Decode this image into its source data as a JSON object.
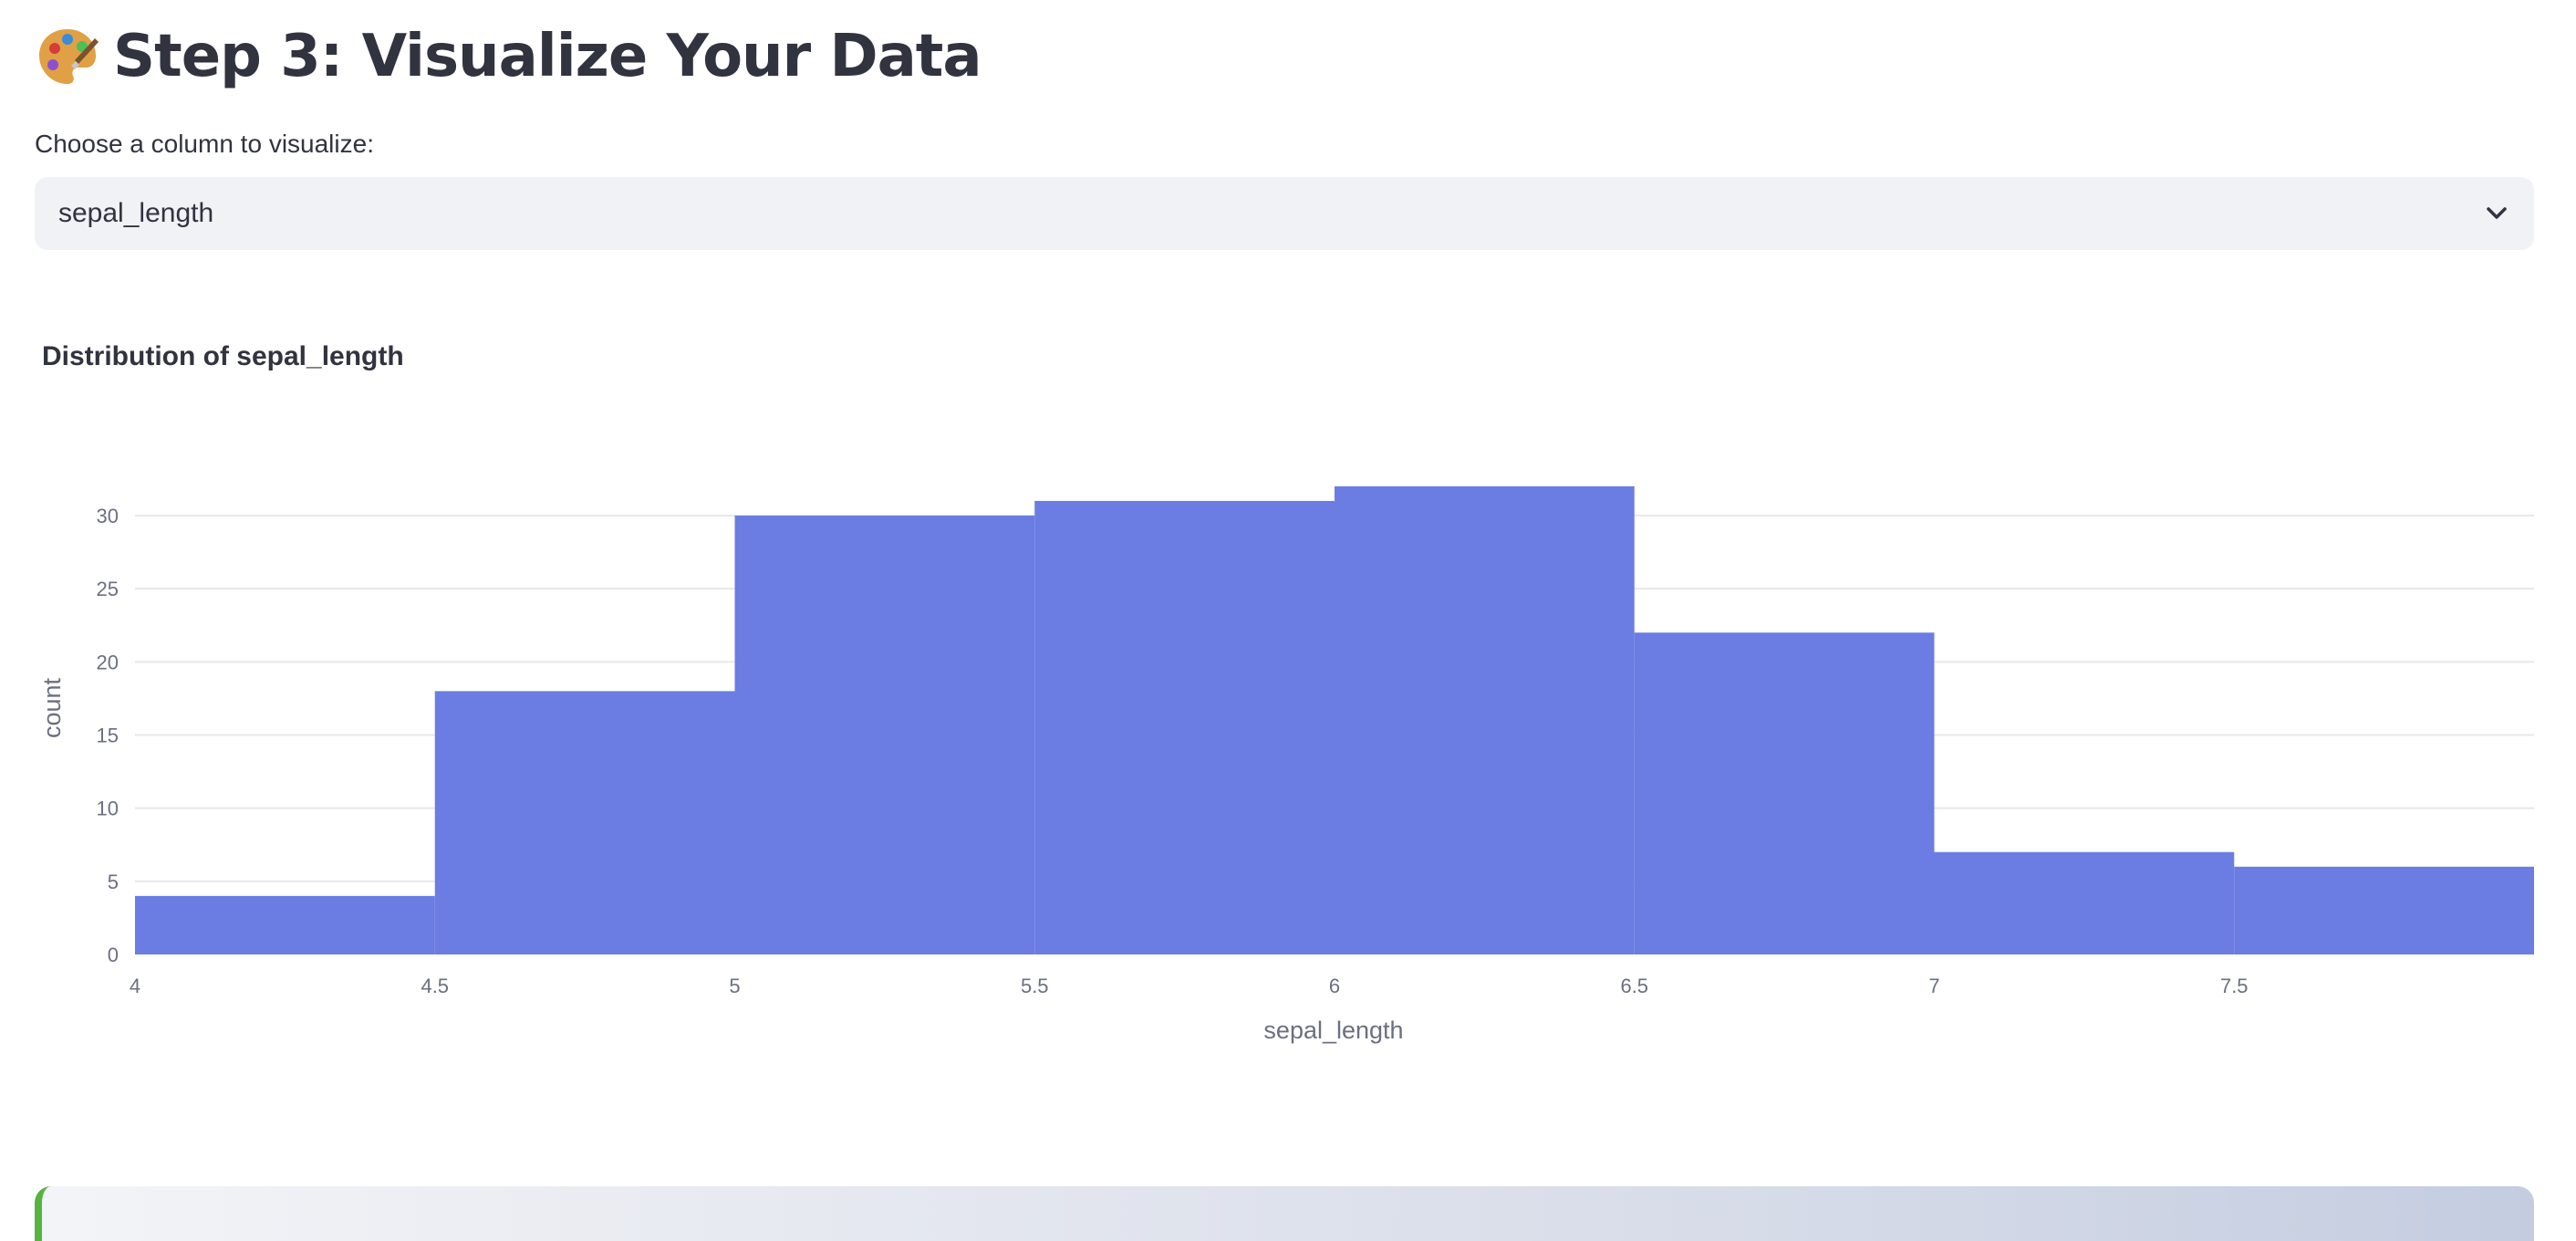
{
  "header": {
    "icon": "palette-icon",
    "title": "Step 3: Visualize Your Data"
  },
  "column_select": {
    "label": "Choose a column to visualize:",
    "selected": "sepal_length",
    "icon": "chevron-down-icon"
  },
  "colors": {
    "bar": "#6b7de3",
    "grid": "#e6e8ec",
    "axis_text": "#6b6f80",
    "accent_green": "#56b340"
  },
  "chart_data": {
    "type": "bar",
    "title": "Distribution of sepal_length",
    "xlabel": "sepal_length",
    "ylabel": "count",
    "bins": [
      {
        "start": 4.0,
        "end": 4.5,
        "count": 4
      },
      {
        "start": 4.5,
        "end": 5.0,
        "count": 18
      },
      {
        "start": 5.0,
        "end": 5.5,
        "count": 30
      },
      {
        "start": 5.5,
        "end": 6.0,
        "count": 31
      },
      {
        "start": 6.0,
        "end": 6.5,
        "count": 32
      },
      {
        "start": 6.5,
        "end": 7.0,
        "count": 22
      },
      {
        "start": 7.0,
        "end": 7.5,
        "count": 7
      },
      {
        "start": 7.5,
        "end": 8.0,
        "count": 6
      }
    ],
    "xlim": [
      4,
      8
    ],
    "ylim": [
      0,
      32
    ],
    "x_ticks": [
      "4",
      "4.5",
      "5",
      "5.5",
      "6",
      "6.5",
      "7",
      "7.5"
    ],
    "y_ticks": [
      "0",
      "5",
      "10",
      "15",
      "20",
      "25",
      "30"
    ],
    "grid": true
  }
}
